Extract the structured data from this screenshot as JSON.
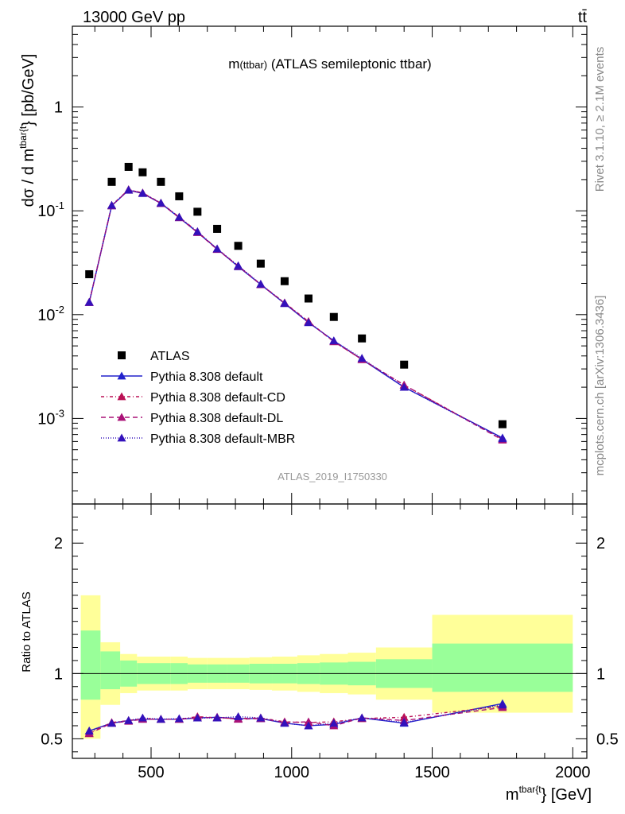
{
  "header": {
    "left": "13000 GeV pp",
    "right": "tt̄"
  },
  "side_labels": {
    "rivet": "Rivet 3.1.10, ≥ 2.1M events",
    "mcplots": "mcplots.cern.ch [arXiv:1306.3436]"
  },
  "chart_data": [
    {
      "type": "line",
      "panel": "main",
      "title": "m(ttbar) (ATLAS semileptonic ttbar)",
      "ylabel": "dσ / d m^{tbar{t}} [pb/GeV]",
      "ylabel_main": "dσ / d m",
      "ylabel_sup": "tbar{t",
      "ylabel_tail": "} [pb/GeV]",
      "yscale": "log",
      "ylim": [
        0.00015,
        6.0
      ],
      "xlim": [
        220,
        2050
      ],
      "yticks": [
        {
          "v": 0.001,
          "base": "10",
          "exp": "-3"
        },
        {
          "v": 0.01,
          "base": "10",
          "exp": "-2"
        },
        {
          "v": 0.1,
          "base": "10",
          "exp": "-1"
        },
        {
          "v": 1,
          "base": "1",
          "exp": ""
        }
      ],
      "watermark": "ATLAS_2019_I1750330",
      "legend_position": "lower-left",
      "x": [
        280,
        360,
        420,
        470,
        535,
        600,
        665,
        735,
        810,
        890,
        975,
        1060,
        1150,
        1250,
        1400,
        1750
      ],
      "series": [
        {
          "name": "ATLAS",
          "color": "#000000",
          "marker": "square",
          "values": [
            0.0245,
            0.19,
            0.265,
            0.235,
            0.19,
            0.138,
            0.098,
            0.067,
            0.046,
            0.031,
            0.021,
            0.0143,
            0.0095,
            0.0059,
            0.0033,
            0.00088
          ]
        },
        {
          "name": "Pythia 8.308 default",
          "color": "#2222cc",
          "marker": "triangle",
          "dash": "",
          "values": [
            0.0131,
            0.112,
            0.158,
            0.147,
            0.118,
            0.086,
            0.062,
            0.043,
            0.029,
            0.0195,
            0.0128,
            0.0084,
            0.0056,
            0.0037,
            0.002,
            0.00065
          ]
        },
        {
          "name": "Pythia 8.308 default-CD",
          "color": "#bb1155",
          "marker": "triangle",
          "dash": "4,3,1,3",
          "values": [
            0.0132,
            0.113,
            0.16,
            0.149,
            0.119,
            0.087,
            0.063,
            0.043,
            0.0295,
            0.0196,
            0.013,
            0.0086,
            0.0055,
            0.0037,
            0.0021,
            0.00063
          ]
        },
        {
          "name": "Pythia 8.308 default-DL",
          "color": "#aa1177",
          "marker": "triangle",
          "dash": "6,4",
          "values": [
            0.0131,
            0.112,
            0.159,
            0.148,
            0.118,
            0.086,
            0.062,
            0.0425,
            0.0293,
            0.0195,
            0.0129,
            0.0085,
            0.0055,
            0.0037,
            0.0021,
            0.00062
          ]
        },
        {
          "name": "Pythia 8.308 default-MBR",
          "color": "#3311bb",
          "marker": "triangle",
          "dash": "1,2",
          "values": [
            0.0132,
            0.113,
            0.159,
            0.148,
            0.119,
            0.087,
            0.063,
            0.043,
            0.0296,
            0.0197,
            0.0129,
            0.0084,
            0.0056,
            0.0038,
            0.002,
            0.00064
          ]
        }
      ]
    },
    {
      "type": "line",
      "panel": "ratio",
      "ylabel": "Ratio to ATLAS",
      "xlabel_main": "m",
      "xlabel_sup": "tbar{t",
      "xlabel_tail": "} [GeV]",
      "ylim": [
        0.35,
        2.3
      ],
      "xlim": [
        220,
        2050
      ],
      "yticks": [
        0.5,
        1,
        2
      ],
      "xticks": [
        500,
        1000,
        1500,
        2000
      ],
      "bins": [
        {
          "lo": 250,
          "hi": 320,
          "stat": [
            0.8,
            1.33
          ],
          "total": [
            0.5,
            1.6
          ]
        },
        {
          "lo": 320,
          "hi": 390,
          "stat": [
            0.88,
            1.17
          ],
          "total": [
            0.76,
            1.24
          ]
        },
        {
          "lo": 390,
          "hi": 450,
          "stat": [
            0.9,
            1.1
          ],
          "total": [
            0.85,
            1.15
          ]
        },
        {
          "lo": 450,
          "hi": 500,
          "stat": [
            0.92,
            1.08
          ],
          "total": [
            0.87,
            1.13
          ]
        },
        {
          "lo": 500,
          "hi": 570,
          "stat": [
            0.92,
            1.08
          ],
          "total": [
            0.87,
            1.13
          ]
        },
        {
          "lo": 570,
          "hi": 630,
          "stat": [
            0.92,
            1.08
          ],
          "total": [
            0.87,
            1.13
          ]
        },
        {
          "lo": 630,
          "hi": 700,
          "stat": [
            0.93,
            1.07
          ],
          "total": [
            0.88,
            1.12
          ]
        },
        {
          "lo": 700,
          "hi": 770,
          "stat": [
            0.93,
            1.07
          ],
          "total": [
            0.88,
            1.12
          ]
        },
        {
          "lo": 770,
          "hi": 850,
          "stat": [
            0.93,
            1.07
          ],
          "total": [
            0.88,
            1.12
          ]
        },
        {
          "lo": 850,
          "hi": 930,
          "stat": [
            0.925,
            1.075
          ],
          "total": [
            0.875,
            1.125
          ]
        },
        {
          "lo": 930,
          "hi": 1020,
          "stat": [
            0.925,
            1.075
          ],
          "total": [
            0.87,
            1.13
          ]
        },
        {
          "lo": 1020,
          "hi": 1100,
          "stat": [
            0.92,
            1.08
          ],
          "total": [
            0.86,
            1.14
          ]
        },
        {
          "lo": 1100,
          "hi": 1200,
          "stat": [
            0.915,
            1.085
          ],
          "total": [
            0.85,
            1.15
          ]
        },
        {
          "lo": 1200,
          "hi": 1300,
          "stat": [
            0.91,
            1.09
          ],
          "total": [
            0.84,
            1.16
          ]
        },
        {
          "lo": 1300,
          "hi": 1500,
          "stat": [
            0.89,
            1.11
          ],
          "total": [
            0.8,
            1.2
          ]
        },
        {
          "lo": 1500,
          "hi": 2000,
          "stat": [
            0.86,
            1.23
          ],
          "total": [
            0.7,
            1.45
          ]
        }
      ],
      "x": [
        280,
        360,
        420,
        470,
        535,
        600,
        665,
        735,
        810,
        890,
        975,
        1060,
        1150,
        1250,
        1400,
        1750
      ],
      "series": [
        {
          "name": "Pythia 8.308 default",
          "color": "#2222cc",
          "dash": "",
          "values": [
            0.56,
            0.62,
            0.64,
            0.65,
            0.65,
            0.65,
            0.66,
            0.665,
            0.655,
            0.655,
            0.62,
            0.6,
            0.61,
            0.66,
            0.62,
            0.77
          ]
        },
        {
          "name": "Pythia 8.308 default-CD",
          "color": "#bb1155",
          "dash": "4,3,1,3",
          "values": [
            0.545,
            0.625,
            0.64,
            0.655,
            0.65,
            0.65,
            0.67,
            0.66,
            0.655,
            0.66,
            0.63,
            0.625,
            0.63,
            0.655,
            0.665,
            0.75
          ]
        },
        {
          "name": "Pythia 8.308 default-DL",
          "color": "#aa1177",
          "dash": "6,4",
          "values": [
            0.54,
            0.62,
            0.635,
            0.65,
            0.65,
            0.65,
            0.66,
            0.665,
            0.65,
            0.655,
            0.625,
            0.63,
            0.6,
            0.66,
            0.64,
            0.74
          ]
        },
        {
          "name": "Pythia 8.308 default-MBR",
          "color": "#3311bb",
          "dash": "1,2",
          "values": [
            0.56,
            0.62,
            0.64,
            0.66,
            0.65,
            0.655,
            0.66,
            0.66,
            0.67,
            0.66,
            0.62,
            0.6,
            0.62,
            0.66,
            0.625,
            0.76
          ]
        }
      ]
    }
  ],
  "colors": {
    "stat_band": "#99ff99",
    "total_band": "#ffff99"
  }
}
